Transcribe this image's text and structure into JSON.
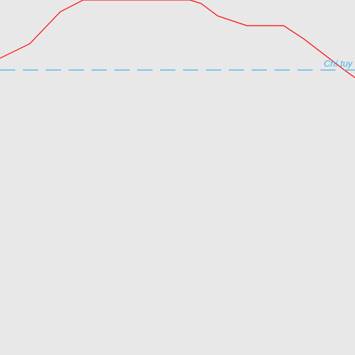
{
  "map": {
    "background_color": "#e8e8e8",
    "border": {
      "kind": "administrative-boundary",
      "color": "#ff0000"
    },
    "tropic_line": {
      "label": "Chí tuy",
      "color": "#3fb2ea",
      "style": "dashed"
    }
  }
}
